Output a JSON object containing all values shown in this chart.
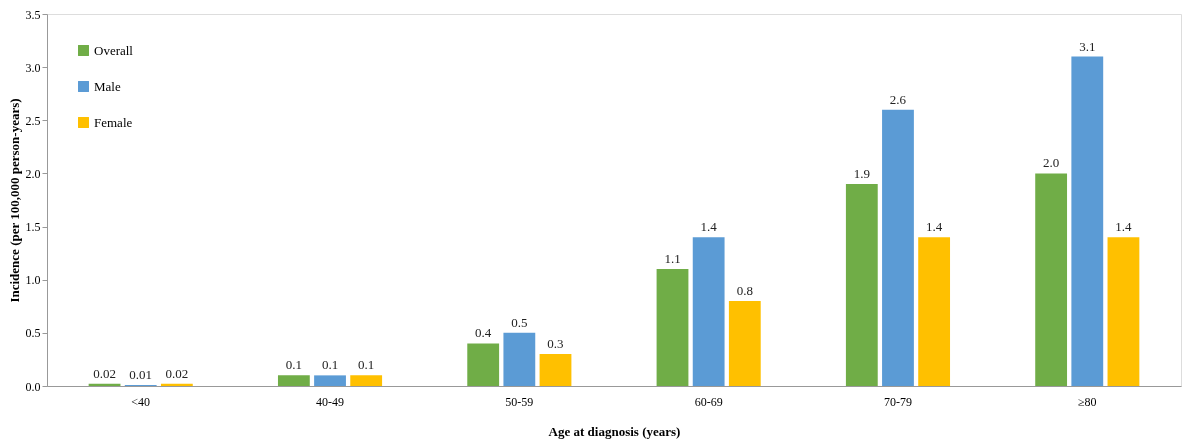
{
  "chart_data": {
    "type": "bar",
    "xlabel": "Age at diagnosis (years)",
    "ylabel": "Incidence (per 100,000 person-years)",
    "categories": [
      "<40",
      "40-49",
      "50-59",
      "60-69",
      "70-79",
      "≥80"
    ],
    "series": [
      {
        "name": "Overall",
        "color": "#70ad47",
        "values": [
          0.02,
          0.1,
          0.4,
          1.1,
          1.9,
          2.0
        ],
        "value_labels": [
          "0.02",
          "0.1",
          "0.4",
          "1.1",
          "1.9",
          "2.0"
        ]
      },
      {
        "name": "Male",
        "color": "#5b9bd5",
        "values": [
          0.01,
          0.1,
          0.5,
          1.4,
          2.6,
          3.1
        ],
        "value_labels": [
          "0.01",
          "0.1",
          "0.5",
          "1.4",
          "2.6",
          "3.1"
        ]
      },
      {
        "name": "Female",
        "color": "#ffc000",
        "values": [
          0.02,
          0.1,
          0.3,
          0.8,
          1.4,
          1.4
        ],
        "value_labels": [
          "0.02",
          "0.1",
          "0.3",
          "0.8",
          "1.4",
          "1.4"
        ]
      }
    ],
    "ylim": [
      0,
      3.5
    ],
    "yticks": [
      {
        "value": 0,
        "label": "0.0"
      },
      0.5,
      {
        "value": 1,
        "label": "1.0"
      },
      1.5,
      {
        "value": 2,
        "label": "2.0"
      },
      2.5,
      {
        "value": 3,
        "label": "3.0"
      },
      3.5
    ],
    "grid": false,
    "legend": "top left"
  }
}
